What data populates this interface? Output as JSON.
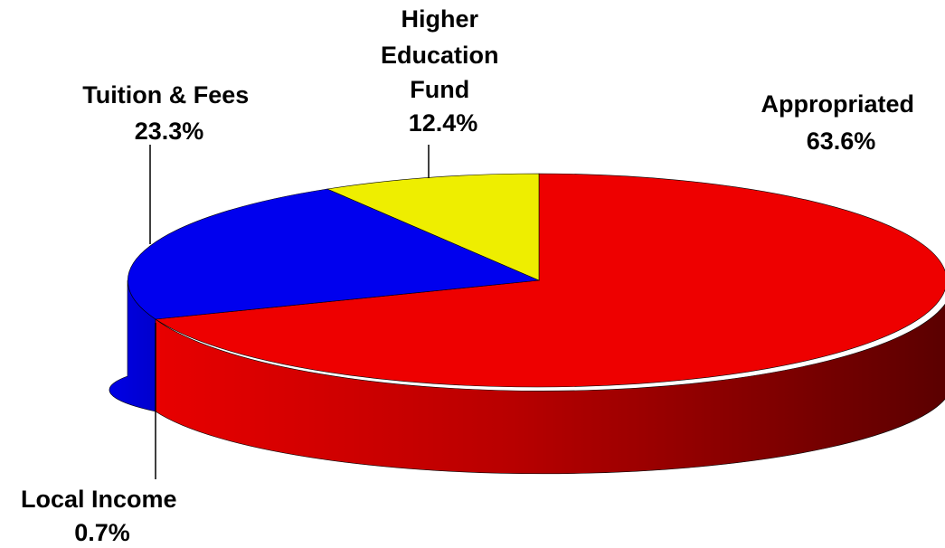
{
  "chart_data": {
    "type": "pie",
    "style": "3d",
    "title": "",
    "slices": [
      {
        "label": "Appropriated",
        "value": 63.6,
        "value_label": "63.6%",
        "color": "#ee0000"
      },
      {
        "label": "Local Income",
        "value": 0.7,
        "value_label": "0.7%",
        "color": "#000000"
      },
      {
        "label": "Tuition & Fees",
        "value": 23.3,
        "value_label": "23.3%",
        "color": "#0000ee"
      },
      {
        "label": "Higher Education Fund",
        "label_lines": [
          "Higher",
          "Education",
          "Fund"
        ],
        "value": 12.4,
        "value_label": "12.4%",
        "color": "#eeee00"
      }
    ]
  }
}
